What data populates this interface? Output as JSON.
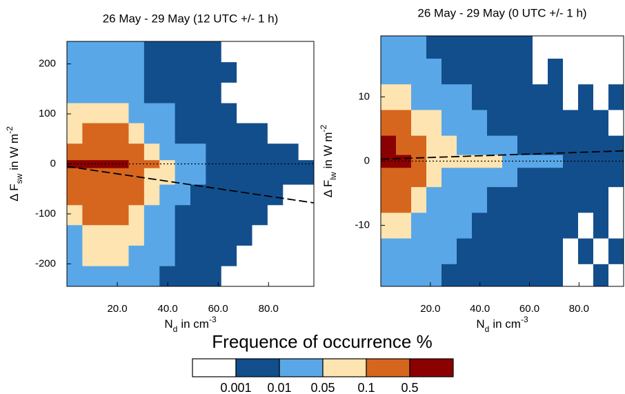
{
  "chart_data": [
    {
      "type": "heatmap",
      "title": "26 May - 29 May (12 UTC +/- 1 h)",
      "xlabel": {
        "main": "N",
        "sub": "d",
        "unit": "in cm",
        "sup": "-3"
      },
      "ylabel": {
        "main": "Δ F",
        "sub": "sw",
        "unit": "in W m",
        "sup": "-2"
      },
      "xlim": [
        0,
        98
      ],
      "ylim": [
        -245,
        245
      ],
      "xticks": [
        {
          "value": 20,
          "label": "20.0"
        },
        {
          "value": 40,
          "label": "40.0"
        },
        {
          "value": 60,
          "label": "60.0"
        },
        {
          "value": 80,
          "label": "80.0"
        }
      ],
      "yticks": [
        -200,
        -100,
        0,
        100,
        200
      ],
      "xbins": [
        0,
        6.125,
        12.25,
        18.375,
        24.5,
        30.625,
        36.75,
        42.875,
        49,
        55.125,
        61.25,
        67.375,
        73.5,
        79.625,
        85.75,
        91.875,
        98
      ],
      "ybins": [
        -245,
        -204,
        -163,
        -122,
        -82,
        -41,
        -8,
        8,
        41,
        82,
        122,
        163,
        204,
        245
      ],
      "values": [
        [
          0.03,
          0.03,
          0.03,
          0.03,
          0.03,
          0.03,
          0.005,
          0.005,
          0.005,
          0.005,
          0,
          0,
          0,
          0,
          0,
          0
        ],
        [
          0.03,
          0.07,
          0.07,
          0.07,
          0.03,
          0.03,
          0.03,
          0.005,
          0.005,
          0.005,
          0.005,
          0,
          0,
          0,
          0,
          0
        ],
        [
          0.03,
          0.07,
          0.07,
          0.07,
          0.07,
          0.03,
          0.03,
          0.005,
          0.005,
          0.005,
          0.005,
          0.005,
          0,
          0,
          0,
          0
        ],
        [
          0.07,
          0.2,
          0.2,
          0.2,
          0.07,
          0.03,
          0.03,
          0.005,
          0.005,
          0.005,
          0.005,
          0.005,
          0.005,
          0,
          0,
          0
        ],
        [
          0.2,
          0.2,
          0.2,
          0.2,
          0.2,
          0.07,
          0.03,
          0.03,
          0.005,
          0.005,
          0.005,
          0.005,
          0.005,
          0.005,
          0,
          0
        ],
        [
          0.2,
          0.2,
          0.2,
          0.2,
          0.2,
          0.07,
          0.07,
          0.03,
          0.03,
          0.005,
          0.005,
          0.005,
          0.005,
          0.005,
          0.005,
          0.005
        ],
        [
          0.7,
          0.7,
          0.7,
          0.7,
          0.2,
          0.2,
          0.07,
          0.03,
          0.03,
          0.005,
          0.005,
          0.005,
          0.005,
          0.005,
          0.005,
          0.005
        ],
        [
          0.2,
          0.2,
          0.2,
          0.2,
          0.2,
          0.07,
          0.03,
          0.03,
          0.03,
          0.005,
          0.005,
          0.005,
          0.005,
          0.005,
          0.005,
          0
        ],
        [
          0.07,
          0.2,
          0.2,
          0.2,
          0.07,
          0.03,
          0.03,
          0.005,
          0.005,
          0.005,
          0.005,
          0.005,
          0.005,
          0,
          0,
          0
        ],
        [
          0.07,
          0.07,
          0.07,
          0.07,
          0.03,
          0.03,
          0.03,
          0.005,
          0.005,
          0.005,
          0.005,
          0,
          0,
          0,
          0,
          0
        ],
        [
          0.03,
          0.03,
          0.03,
          0.03,
          0.03,
          0.005,
          0.005,
          0.005,
          0.005,
          0.005,
          0,
          0,
          0,
          0,
          0,
          0
        ],
        [
          0.03,
          0.03,
          0.03,
          0.03,
          0.03,
          0.005,
          0.005,
          0.005,
          0.005,
          0.005,
          0.005,
          0,
          0,
          0,
          0,
          0
        ],
        [
          0.03,
          0.03,
          0.03,
          0.03,
          0.03,
          0.005,
          0.005,
          0.005,
          0.005,
          0.005,
          0,
          0,
          0,
          0,
          0,
          0
        ]
      ],
      "zero_line": 0,
      "fit_line": {
        "x": [
          0,
          98
        ],
        "values": [
          -5,
          -78
        ]
      }
    },
    {
      "type": "heatmap",
      "title": "26 May - 29 May (0 UTC +/- 1 h)",
      "xlabel": {
        "main": "N",
        "sub": "d",
        "unit": "in cm",
        "sup": "-3"
      },
      "ylabel": {
        "main": "Δ F",
        "sub": "lw",
        "unit": "in W m",
        "sup": "-2"
      },
      "xlim": [
        0,
        98
      ],
      "ylim": [
        -19.5,
        19.5
      ],
      "xticks": [
        {
          "value": 20,
          "label": "20.0"
        },
        {
          "value": 40,
          "label": "40.0"
        },
        {
          "value": 60,
          "label": "60.0"
        },
        {
          "value": 80,
          "label": "80.0"
        }
      ],
      "yticks": [
        -10,
        0,
        10
      ],
      "xbins": [
        0,
        6.125,
        12.25,
        18.375,
        24.5,
        30.625,
        36.75,
        42.875,
        49,
        55.125,
        61.25,
        67.375,
        73.5,
        79.625,
        85.75,
        91.875,
        98
      ],
      "ybins": [
        -19.5,
        -16,
        -12,
        -8,
        -4,
        -1,
        1,
        4,
        8,
        12,
        16,
        19.5
      ],
      "values": [
        [
          0.03,
          0.03,
          0.03,
          0.03,
          0.005,
          0.005,
          0.005,
          0.005,
          0.005,
          0.005,
          0.005,
          0.005,
          0,
          0,
          0.005,
          0
        ],
        [
          0.03,
          0.03,
          0.03,
          0.03,
          0.03,
          0.005,
          0.005,
          0.005,
          0.005,
          0.005,
          0.005,
          0.005,
          0,
          0.005,
          0,
          0.005
        ],
        [
          0.07,
          0.07,
          0.03,
          0.03,
          0.03,
          0.03,
          0.005,
          0.005,
          0.005,
          0.005,
          0.005,
          0.005,
          0.005,
          0,
          0.005,
          0
        ],
        [
          0.2,
          0.2,
          0.07,
          0.03,
          0.03,
          0.03,
          0.03,
          0.005,
          0.005,
          0.005,
          0.005,
          0.005,
          0.005,
          0.005,
          0.005,
          0
        ],
        [
          0.2,
          0.2,
          0.2,
          0.07,
          0.03,
          0.03,
          0.03,
          0.03,
          0.03,
          0.005,
          0.005,
          0.005,
          0.005,
          0.005,
          0.005,
          0.005
        ],
        [
          0.7,
          0.7,
          0.2,
          0.07,
          0.07,
          0.07,
          0.07,
          0.07,
          0.03,
          0.03,
          0.03,
          0.03,
          0.005,
          0.005,
          0.005,
          0.005
        ],
        [
          0.7,
          0.2,
          0.2,
          0.07,
          0.07,
          0.03,
          0.03,
          0.03,
          0.03,
          0.005,
          0.005,
          0.005,
          0.005,
          0.005,
          0.005,
          0.005
        ],
        [
          0.2,
          0.2,
          0.07,
          0.07,
          0.03,
          0.03,
          0.03,
          0.005,
          0.005,
          0.005,
          0.005,
          0.005,
          0.005,
          0.005,
          0.005,
          0
        ],
        [
          0.07,
          0.07,
          0.03,
          0.03,
          0.03,
          0.03,
          0.005,
          0.005,
          0.005,
          0.005,
          0.005,
          0.005,
          0,
          0.005,
          0,
          0.005
        ],
        [
          0.03,
          0.03,
          0.03,
          0.03,
          0.005,
          0.005,
          0.005,
          0.005,
          0.005,
          0.005,
          0,
          0.005,
          0,
          0,
          0,
          0
        ],
        [
          0.03,
          0.03,
          0.03,
          0.005,
          0.005,
          0.005,
          0.005,
          0.005,
          0.005,
          0.005,
          0,
          0,
          0,
          0,
          0,
          0
        ]
      ],
      "zero_line": 0,
      "fit_line": {
        "x": [
          0,
          98
        ],
        "values": [
          0.3,
          1.6
        ]
      }
    },
    {
      "type": "colorbar",
      "title": "Frequence of occurrence %",
      "levels": [
        0.001,
        0.01,
        0.05,
        0.1,
        0.5
      ],
      "colors": [
        "#ffffff",
        "#124e8c",
        "#5aa7e8",
        "#fde4b0",
        "#d6661e",
        "#8b0000"
      ]
    }
  ]
}
